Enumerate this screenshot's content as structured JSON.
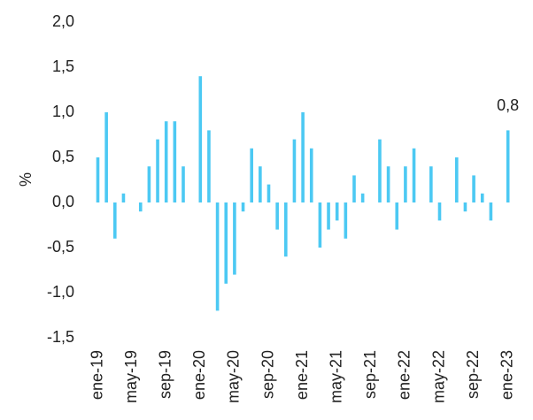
{
  "chart_data": {
    "type": "bar",
    "y_label": "%",
    "categories": [
      "ene-19",
      null,
      null,
      null,
      "may-19",
      null,
      null,
      null,
      "sep-19",
      null,
      null,
      null,
      "ene-20",
      null,
      null,
      null,
      "may-20",
      null,
      null,
      null,
      "sep-20",
      null,
      null,
      null,
      "ene-21",
      null,
      null,
      null,
      "may-21",
      null,
      null,
      null,
      "sep-21",
      null,
      null,
      null,
      "ene-22",
      null,
      null,
      null,
      "may-22",
      null,
      null,
      null,
      "sep-22",
      null,
      null,
      null,
      "ene-23"
    ],
    "values": [
      0.5,
      1.0,
      -0.4,
      0.1,
      0,
      -0.1,
      0.4,
      0.7,
      0.9,
      0.9,
      0.4,
      0,
      1.4,
      0.8,
      -1.2,
      -0.9,
      -0.8,
      -0.1,
      0.6,
      0.4,
      0.2,
      -0.3,
      -0.6,
      0.7,
      1.0,
      0.6,
      -0.5,
      -0.3,
      -0.2,
      -0.4,
      0.3,
      0.1,
      0,
      0.7,
      0.4,
      -0.3,
      0.4,
      0.6,
      0,
      0.4,
      -0.2,
      0,
      0.5,
      -0.1,
      0.3,
      0.1,
      -0.2,
      0,
      0.8
    ],
    "value_labels": [
      null,
      null,
      null,
      null,
      null,
      null,
      null,
      null,
      null,
      null,
      null,
      null,
      null,
      null,
      null,
      null,
      null,
      null,
      null,
      null,
      null,
      null,
      null,
      null,
      null,
      null,
      null,
      null,
      null,
      null,
      null,
      null,
      null,
      null,
      null,
      null,
      null,
      null,
      null,
      null,
      null,
      null,
      null,
      null,
      null,
      null,
      null,
      null,
      "0,8"
    ],
    "color": "#4cc9f3",
    "ylim": [
      -1.5,
      2.0
    ],
    "yticks": [
      {
        "value": -1.5,
        "label": "-1,5"
      },
      {
        "value": -1.0,
        "label": "-1,0"
      },
      {
        "value": -0.5,
        "label": "-0,5"
      },
      {
        "value": 0,
        "label": "0,0"
      },
      {
        "value": 0.5,
        "label": "0,5"
      },
      {
        "value": 1.0,
        "label": "1,0"
      },
      {
        "value": 1.5,
        "label": "1,5"
      },
      {
        "value": 2.0,
        "label": "2,0"
      }
    ],
    "grid": false
  }
}
